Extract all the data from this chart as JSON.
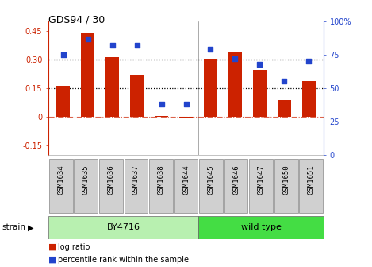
{
  "title": "GDS94 / 30",
  "categories": [
    "GSM1634",
    "GSM1635",
    "GSM1636",
    "GSM1637",
    "GSM1638",
    "GSM1644",
    "GSM1645",
    "GSM1646",
    "GSM1647",
    "GSM1650",
    "GSM1651"
  ],
  "log_ratio": [
    0.16,
    0.44,
    0.31,
    0.22,
    0.005,
    -0.01,
    0.305,
    0.335,
    0.245,
    0.085,
    0.185
  ],
  "percentile_rank": [
    75,
    87,
    82,
    82,
    38,
    38,
    79,
    72,
    68,
    55,
    70
  ],
  "bar_color": "#cc2200",
  "dot_color": "#2244cc",
  "bg_color": "#ffffff",
  "left_ylim": [
    -0.2,
    0.5
  ],
  "right_ylim": [
    0,
    100
  ],
  "left_yticks": [
    -0.15,
    0.0,
    0.15,
    0.3,
    0.45
  ],
  "right_yticks": [
    0,
    25,
    50,
    75,
    100
  ],
  "right_yticklabels": [
    "0",
    "25",
    "50",
    "75",
    "100%"
  ],
  "hline_dotted": [
    0.15,
    0.3
  ],
  "hline_dashdot": 0.0,
  "n_by4716": 6,
  "by4716_label": "BY4716",
  "wild_type_label": "wild type",
  "strain_label": "strain",
  "legend_log": "log ratio",
  "legend_pct": "percentile rank within the sample",
  "by4716_color": "#b8f0b0",
  "wild_type_color": "#44dd44",
  "sample_box_color": "#d0d0d0",
  "separator_color": "#888888",
  "left_tick_color": "#cc2200",
  "right_tick_color": "#2244cc"
}
